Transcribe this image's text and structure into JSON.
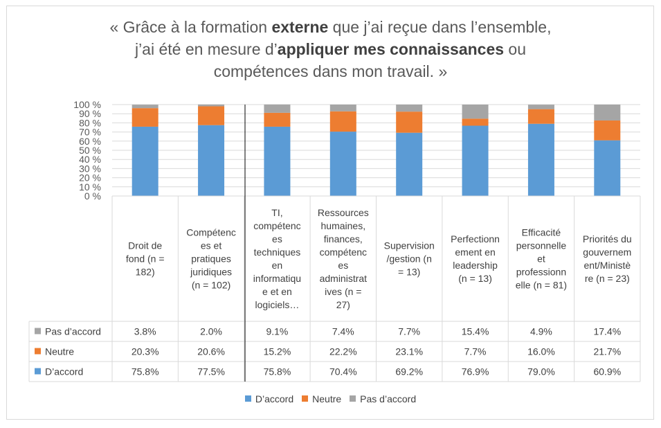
{
  "title": {
    "line1_pre": "« Grâce à la formation ",
    "line1_bold": "externe",
    "line1_post": " que j’ai reçue dans l’ensemble,",
    "line2_pre": "j’ai été en mesure d’",
    "line2_bold": "appliquer mes connaissances",
    "line2_post": " ou",
    "line3": "compétences dans mon travail. »"
  },
  "chart_data": {
    "type": "bar",
    "stacked": true,
    "percent": true,
    "categories": [
      [
        "Droit de",
        "fond (n =",
        "182)"
      ],
      [
        "Compétenc",
        "es et",
        "pratiques",
        "juridiques",
        "(n = 102)"
      ],
      [
        "TI,",
        "compétenc",
        "es",
        "techniques",
        "en",
        "informatiqu",
        "e et en",
        "logiciels…"
      ],
      [
        "Ressources",
        "humaines,",
        "finances,",
        "compétenc",
        "es",
        "administrat",
        "ives (n =",
        "27)"
      ],
      [
        "Supervision",
        "/gestion (n",
        "= 13)"
      ],
      [
        "Perfectionn",
        "ement en",
        "leadership",
        "(n = 13)"
      ],
      [
        "Efficacité",
        "personnelle",
        "et",
        "professionn",
        "elle (n = 81)"
      ],
      [
        "Priorités du",
        "gouvernem",
        "ent/Ministè",
        "re (n = 23)"
      ]
    ],
    "series": [
      {
        "name": "D’accord",
        "color": "#5b9bd5",
        "values": [
          75.8,
          77.5,
          75.8,
          70.4,
          69.2,
          76.9,
          79.0,
          60.9
        ],
        "labels": [
          "75.8%",
          "77.5%",
          "75.8%",
          "70.4%",
          "69.2%",
          "76.9%",
          "79.0%",
          "60.9%"
        ]
      },
      {
        "name": "Neutre",
        "color": "#ed7d31",
        "values": [
          20.3,
          20.6,
          15.2,
          22.2,
          23.1,
          7.7,
          16.0,
          21.7
        ],
        "labels": [
          "20.3%",
          "20.6%",
          "15.2%",
          "22.2%",
          "23.1%",
          "7.7%",
          "16.0%",
          "21.7%"
        ]
      },
      {
        "name": "Pas d’accord",
        "color": "#a5a5a5",
        "values": [
          3.8,
          2.0,
          9.1,
          7.4,
          7.7,
          15.4,
          4.9,
          17.4
        ],
        "labels": [
          "3.8%",
          "2.0%",
          "9.1%",
          "7.4%",
          "7.7%",
          "15.4%",
          "4.9%",
          "17.4%"
        ]
      }
    ],
    "yticks": [
      "0 %",
      "10 %",
      "20 %",
      "30 %",
      "40 %",
      "50 %",
      "60 %",
      "70 %",
      "80 %",
      "90 %",
      "100 %"
    ],
    "ylim": [
      0,
      100
    ],
    "grid": true,
    "legend": "bottom",
    "table_row_order": [
      2,
      1,
      0
    ]
  }
}
